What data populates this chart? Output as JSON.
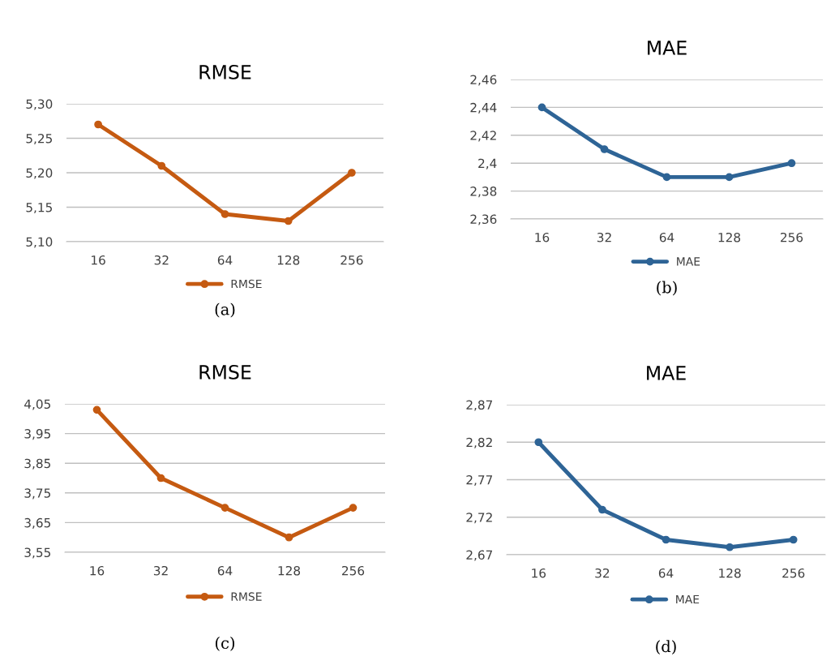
{
  "chart_data": [
    {
      "type": "line",
      "title": "RMSE",
      "categories": [
        "16",
        "32",
        "64",
        "128",
        "256"
      ],
      "series": [
        {
          "name": "RMSE",
          "color": "#c55a11",
          "values": [
            5.27,
            5.21,
            5.14,
            5.13,
            5.2
          ]
        }
      ],
      "ylim": [
        5.1,
        5.3
      ],
      "yticks": [
        {
          "value": 5.1,
          "label": "5,10"
        },
        {
          "value": 5.15,
          "label": "5,15"
        },
        {
          "value": 5.2,
          "label": "5,20"
        },
        {
          "value": 5.25,
          "label": "5,25"
        },
        {
          "value": 5.3,
          "label": "5,30"
        }
      ],
      "grid": "y",
      "legend": "bottom",
      "marker": "circle",
      "line_style": "solid",
      "annotations": [
        "(a)"
      ]
    },
    {
      "type": "line",
      "title": "MAE",
      "categories": [
        "16",
        "32",
        "64",
        "128",
        "256"
      ],
      "series": [
        {
          "name": "MAE",
          "color": "#2e6496",
          "values": [
            2.44,
            2.41,
            2.39,
            2.39,
            2.4
          ]
        }
      ],
      "ylim": [
        2.36,
        2.46
      ],
      "yticks": [
        {
          "value": 2.36,
          "label": "2,36"
        },
        {
          "value": 2.38,
          "label": "2,38"
        },
        {
          "value": 2.4,
          "label": "2,4"
        },
        {
          "value": 2.42,
          "label": "2,42"
        },
        {
          "value": 2.44,
          "label": "2,44"
        },
        {
          "value": 2.46,
          "label": "2,46"
        }
      ],
      "grid": "y",
      "legend": "bottom",
      "marker": "circle",
      "line_style": "solid",
      "annotations": [
        "(b)"
      ]
    },
    {
      "type": "line",
      "title": "RMSE",
      "categories": [
        "16",
        "32",
        "64",
        "128",
        "256"
      ],
      "series": [
        {
          "name": "RMSE",
          "color": "#c55a11",
          "values": [
            4.03,
            3.8,
            3.7,
            3.6,
            3.7
          ]
        }
      ],
      "ylim": [
        3.55,
        4.05
      ],
      "yticks": [
        {
          "value": 3.55,
          "label": "3,55"
        },
        {
          "value": 3.65,
          "label": "3,65"
        },
        {
          "value": 3.75,
          "label": "3,75"
        },
        {
          "value": 3.85,
          "label": "3,85"
        },
        {
          "value": 3.95,
          "label": "3,95"
        },
        {
          "value": 4.05,
          "label": "4,05"
        }
      ],
      "grid": "y",
      "legend": "bottom",
      "marker": "circle",
      "line_style": "solid",
      "annotations": [
        "(c)"
      ]
    },
    {
      "type": "line",
      "title": "MAE",
      "categories": [
        "16",
        "32",
        "64",
        "128",
        "256"
      ],
      "series": [
        {
          "name": "MAE",
          "color": "#2e6496",
          "values": [
            2.82,
            2.73,
            2.69,
            2.68,
            2.69
          ]
        }
      ],
      "ylim": [
        2.67,
        2.87
      ],
      "yticks": [
        {
          "value": 2.67,
          "label": "2,67"
        },
        {
          "value": 2.72,
          "label": "2,72"
        },
        {
          "value": 2.77,
          "label": "2,77"
        },
        {
          "value": 2.82,
          "label": "2,82"
        },
        {
          "value": 2.87,
          "label": "2,87"
        }
      ],
      "grid": "y",
      "legend": "bottom",
      "marker": "circle",
      "line_style": "solid",
      "annotations": [
        "(d)"
      ]
    }
  ]
}
